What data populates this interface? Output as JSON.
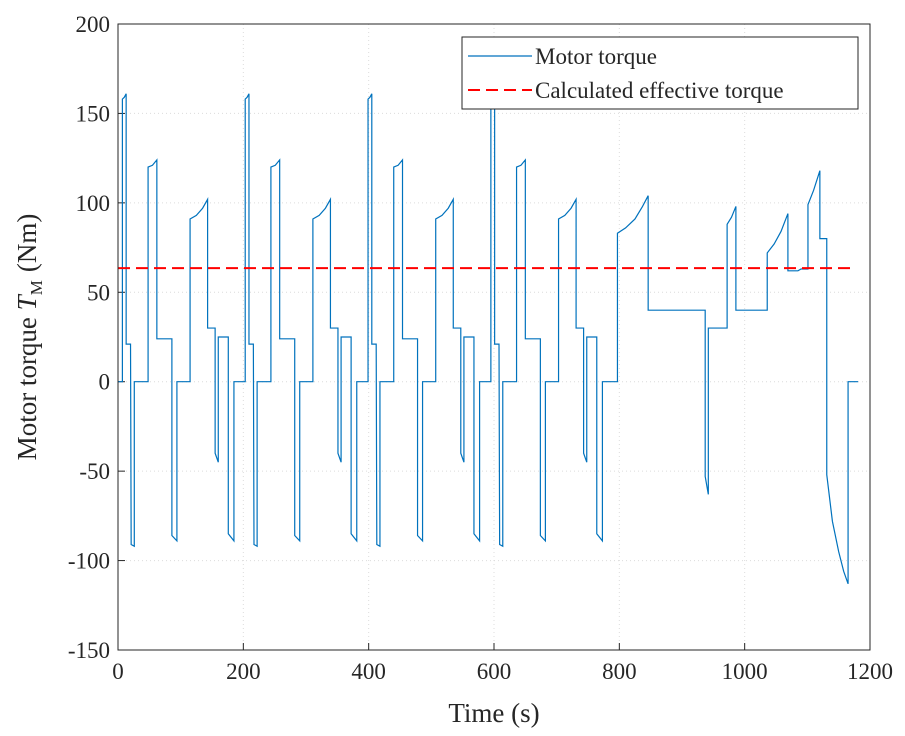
{
  "chart_data": {
    "type": "line",
    "xlabel": "Time (s)",
    "ylabel": {
      "text": "Motor torque",
      "symbol": "T",
      "subscript": "M",
      "unit": "(Nm)"
    },
    "xlim": [
      0,
      1200
    ],
    "xticks": [
      0,
      200,
      400,
      600,
      800,
      1000,
      1200
    ],
    "ylim": [
      -150,
      200
    ],
    "yticks": [
      -150,
      -100,
      -50,
      0,
      50,
      100,
      150,
      200
    ],
    "grid": true,
    "legend": "upper right",
    "series": [
      {
        "name": "Motor torque",
        "color": "#0072bd",
        "dash": "solid",
        "x": [
          0,
          7,
          7,
          10,
          13,
          13,
          20,
          21,
          26,
          26,
          48,
          48,
          55,
          62,
          62,
          86,
          86,
          94,
          94,
          115,
          115,
          125,
          135,
          143,
          143,
          155,
          155,
          160,
          160,
          176,
          176,
          185,
          185,
          203,
          203,
          206,
          209,
          209,
          216,
          217,
          222,
          222,
          244,
          244,
          251,
          258,
          258,
          282,
          282,
          290,
          290,
          311,
          311,
          321,
          331,
          339,
          339,
          351,
          351,
          356,
          356,
          372,
          372,
          381,
          381,
          399,
          399,
          402,
          405,
          405,
          412,
          413,
          418,
          418,
          440,
          440,
          447,
          454,
          454,
          478,
          478,
          486,
          486,
          507,
          507,
          517,
          527,
          535,
          535,
          547,
          547,
          552,
          552,
          568,
          568,
          577,
          577,
          595,
          595,
          598,
          601,
          601,
          608,
          609,
          614,
          614,
          636,
          636,
          643,
          650,
          650,
          674,
          674,
          682,
          682,
          703,
          703,
          713,
          723,
          731,
          731,
          743,
          743,
          748,
          748,
          764,
          764,
          773,
          773,
          797,
          797,
          810,
          825,
          837,
          846,
          846,
          937,
          937,
          942,
          942,
          972,
          972,
          979,
          986,
          986,
          1036,
          1036,
          1047,
          1058,
          1069,
          1069,
          1085,
          1090,
          1101,
          1101,
          1110,
          1120,
          1120,
          1131,
          1131,
          1140,
          1150,
          1158,
          1165,
          1165,
          1181
        ],
        "values": [
          0,
          0,
          158,
          159,
          161,
          21,
          21,
          -91,
          -92,
          0,
          0,
          120,
          121,
          124,
          24,
          24,
          -86,
          -89,
          0,
          0,
          91,
          93,
          97,
          102,
          30,
          30,
          -40,
          -45,
          25,
          25,
          -85,
          -89,
          0,
          0,
          158,
          159,
          161,
          21,
          21,
          -91,
          -92,
          0,
          0,
          120,
          121,
          124,
          24,
          24,
          -86,
          -89,
          0,
          0,
          91,
          93,
          97,
          102,
          30,
          30,
          -40,
          -45,
          25,
          25,
          -85,
          -89,
          0,
          0,
          158,
          159,
          161,
          21,
          21,
          -91,
          -92,
          0,
          0,
          120,
          121,
          124,
          24,
          24,
          -86,
          -89,
          0,
          0,
          91,
          93,
          97,
          102,
          30,
          30,
          -40,
          -45,
          25,
          25,
          -85,
          -89,
          0,
          0,
          158,
          159,
          161,
          21,
          21,
          -91,
          -92,
          0,
          0,
          120,
          121,
          124,
          24,
          24,
          -86,
          -89,
          0,
          0,
          91,
          93,
          97,
          102,
          30,
          30,
          -40,
          -45,
          25,
          25,
          -85,
          -89,
          0,
          0,
          83,
          86,
          91,
          98,
          104,
          40,
          40,
          -53,
          -63,
          30,
          30,
          88,
          92,
          98,
          40,
          40,
          72,
          77,
          84,
          94,
          62,
          62,
          63,
          63,
          99,
          107,
          118,
          80,
          80,
          -52,
          -78,
          -95,
          -106,
          -113,
          0,
          0
        ]
      },
      {
        "name": "Calculated effective torque",
        "color": "#ff0000",
        "dash": "dashed",
        "x": [
          0,
          1176
        ],
        "values": [
          63.5,
          63.5
        ]
      }
    ]
  }
}
